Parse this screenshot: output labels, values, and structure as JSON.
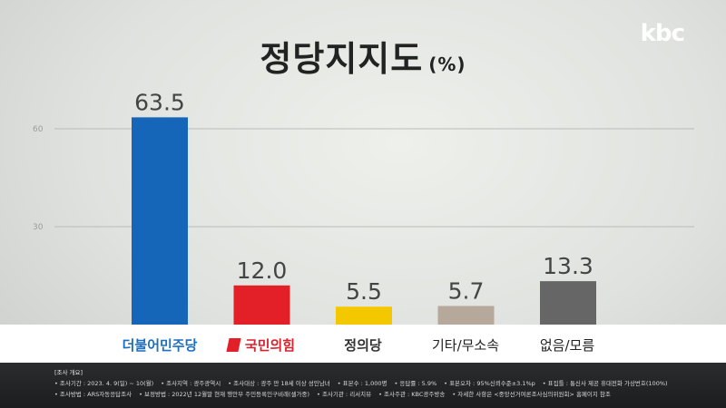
{
  "header": {
    "title": "정당지지도",
    "unit": "(%)",
    "logo": "kbc"
  },
  "chart_data": {
    "type": "bar",
    "title": "정당지지도",
    "unit": "(%)",
    "categories": [
      "더불어민주당",
      "국민의힘",
      "정의당",
      "기타/무소속",
      "없음/모름"
    ],
    "values": [
      63.5,
      12.0,
      5.5,
      5.7,
      13.3
    ],
    "value_labels": [
      "63.5",
      "12.0",
      "5.5",
      "5.7",
      "13.3"
    ],
    "colors": [
      "#1565b8",
      "#e32028",
      "#f4c800",
      "#b7a89c",
      "#666666"
    ],
    "yticks": [
      30,
      60
    ],
    "ylim": [
      0,
      70
    ],
    "grid": true,
    "legend": "none"
  },
  "footer": {
    "heading": "[조사 개요]",
    "line1": [
      "• 조사기간 : 2023. 4. 9(일) ~ 10(월)",
      "• 조사지역 : 광주광역시",
      "• 조사대상 : 광주 만 18세 이상 성인남녀",
      "• 표본수 : 1,000명",
      "• 응답률 : 5.9%",
      "• 표본오차 : 95%신뢰수준±3.1%p",
      "• 표집틀 : 통신사 제공 휴대전화 가상번호(100%)"
    ],
    "line2": [
      "• 조사방법 : ARS자동응답조사",
      "• 보정방법 : 2022년 12월말 현재 행안부 주민등록인구비례(셀가중)",
      "• 조사기관 : 리서치뷰",
      "• 조사주관 : KBC광주방송",
      "• 자세한 사항은 <중앙선거여론조사심의위원회> 홈페이지 참조"
    ]
  }
}
